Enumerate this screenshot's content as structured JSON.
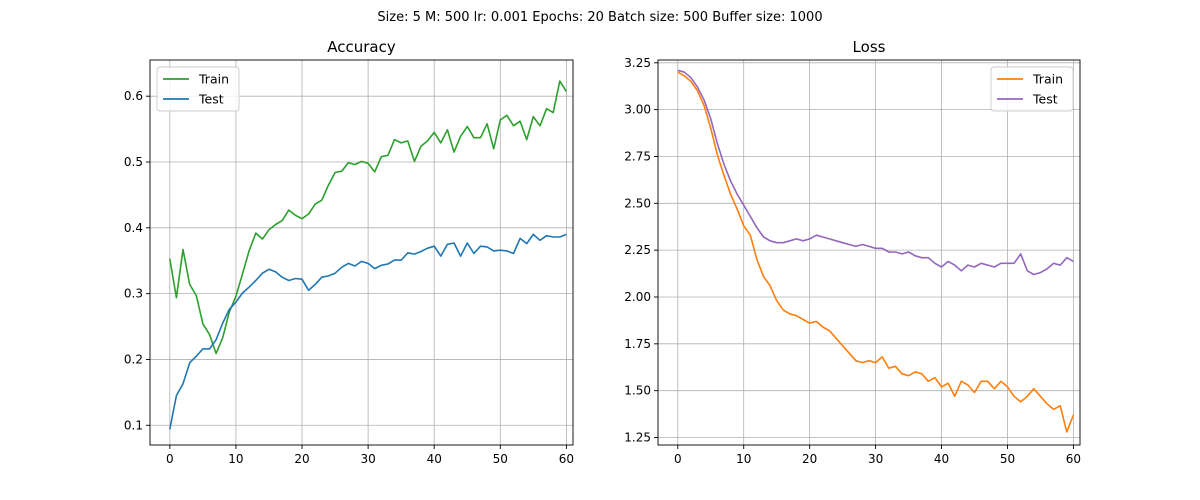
{
  "suptitle": "Size: 5   M: 500   lr: 0.001   Epochs: 20   Batch size: 500   Buffer size: 1000",
  "chart_data": [
    {
      "type": "line",
      "title": "Accuracy",
      "xlabel": "",
      "ylabel": "",
      "xlim": [
        -3,
        61
      ],
      "ylim": [
        0.07,
        0.655
      ],
      "xticks": [
        0,
        10,
        20,
        30,
        40,
        50,
        60
      ],
      "yticks": [
        0.1,
        0.2,
        0.3,
        0.4,
        0.5,
        0.6
      ],
      "xtick_labels": [
        "0",
        "10",
        "20",
        "30",
        "40",
        "50",
        "60"
      ],
      "ytick_labels": [
        "0.1",
        "0.2",
        "0.3",
        "0.4",
        "0.5",
        "0.6"
      ],
      "grid": true,
      "legend": "top-left",
      "series": [
        {
          "name": "Train",
          "color": "#2ca02c",
          "x": [
            0,
            1,
            2,
            3,
            4,
            5,
            6,
            7,
            8,
            9,
            10,
            11,
            12,
            13,
            14,
            15,
            16,
            17,
            18,
            19,
            20,
            21,
            22,
            23,
            24,
            25,
            26,
            27,
            28,
            29,
            30,
            31,
            32,
            33,
            34,
            35,
            36,
            37,
            38,
            39,
            40,
            41,
            42,
            43,
            44,
            45,
            46,
            47,
            48,
            49,
            50,
            51,
            52,
            53,
            54,
            55,
            56,
            57,
            58,
            59,
            60
          ],
          "values": [
            0.353,
            0.294,
            0.367,
            0.314,
            0.297,
            0.254,
            0.238,
            0.209,
            0.233,
            0.272,
            0.296,
            0.33,
            0.365,
            0.392,
            0.383,
            0.397,
            0.405,
            0.411,
            0.427,
            0.419,
            0.414,
            0.421,
            0.436,
            0.442,
            0.465,
            0.484,
            0.486,
            0.499,
            0.496,
            0.501,
            0.498,
            0.485,
            0.508,
            0.51,
            0.534,
            0.529,
            0.532,
            0.501,
            0.524,
            0.532,
            0.545,
            0.529,
            0.549,
            0.515,
            0.539,
            0.554,
            0.537,
            0.537,
            0.558,
            0.52,
            0.564,
            0.571,
            0.555,
            0.562,
            0.534,
            0.569,
            0.555,
            0.581,
            0.575,
            0.623,
            0.607
          ]
        },
        {
          "name": "Test",
          "color": "#1f77b4",
          "x": [
            0,
            1,
            2,
            3,
            4,
            5,
            6,
            7,
            8,
            9,
            10,
            11,
            12,
            13,
            14,
            15,
            16,
            17,
            18,
            19,
            20,
            21,
            22,
            23,
            24,
            25,
            26,
            27,
            28,
            29,
            30,
            31,
            32,
            33,
            34,
            35,
            36,
            37,
            38,
            39,
            40,
            41,
            42,
            43,
            44,
            45,
            46,
            47,
            48,
            49,
            50,
            51,
            52,
            53,
            54,
            55,
            56,
            57,
            58,
            59,
            60
          ],
          "values": [
            0.094,
            0.145,
            0.163,
            0.195,
            0.205,
            0.216,
            0.216,
            0.23,
            0.255,
            0.276,
            0.287,
            0.301,
            0.31,
            0.32,
            0.331,
            0.337,
            0.333,
            0.325,
            0.32,
            0.323,
            0.322,
            0.305,
            0.314,
            0.325,
            0.327,
            0.331,
            0.34,
            0.346,
            0.342,
            0.349,
            0.346,
            0.338,
            0.343,
            0.345,
            0.351,
            0.351,
            0.362,
            0.36,
            0.364,
            0.369,
            0.372,
            0.357,
            0.375,
            0.377,
            0.357,
            0.377,
            0.361,
            0.372,
            0.371,
            0.365,
            0.366,
            0.365,
            0.361,
            0.384,
            0.376,
            0.39,
            0.381,
            0.388,
            0.386,
            0.386,
            0.39
          ]
        }
      ]
    },
    {
      "type": "line",
      "title": "Loss",
      "xlabel": "",
      "ylabel": "",
      "xlim": [
        -3,
        61
      ],
      "ylim": [
        1.21,
        3.265
      ],
      "xticks": [
        0,
        10,
        20,
        30,
        40,
        50,
        60
      ],
      "yticks": [
        1.25,
        1.5,
        1.75,
        2.0,
        2.25,
        2.5,
        2.75,
        3.0,
        3.25
      ],
      "xtick_labels": [
        "0",
        "10",
        "20",
        "30",
        "40",
        "50",
        "60"
      ],
      "ytick_labels": [
        "1.25",
        "1.50",
        "1.75",
        "2.00",
        "2.25",
        "2.50",
        "2.75",
        "3.00",
        "3.25"
      ],
      "grid": true,
      "legend": "top-right",
      "series": [
        {
          "name": "Train",
          "color": "#ff7f0e",
          "x": [
            0,
            1,
            2,
            3,
            4,
            5,
            6,
            7,
            8,
            9,
            10,
            11,
            12,
            13,
            14,
            15,
            16,
            17,
            18,
            19,
            20,
            21,
            22,
            23,
            24,
            25,
            26,
            27,
            28,
            29,
            30,
            31,
            32,
            33,
            34,
            35,
            36,
            37,
            38,
            39,
            40,
            41,
            42,
            43,
            44,
            45,
            46,
            47,
            48,
            49,
            50,
            51,
            52,
            53,
            54,
            55,
            56,
            57,
            58,
            59,
            60
          ],
          "values": [
            3.2,
            3.18,
            3.15,
            3.1,
            3.02,
            2.9,
            2.76,
            2.65,
            2.55,
            2.47,
            2.38,
            2.33,
            2.2,
            2.11,
            2.06,
            1.98,
            1.93,
            1.91,
            1.9,
            1.88,
            1.86,
            1.87,
            1.84,
            1.82,
            1.78,
            1.74,
            1.7,
            1.66,
            1.65,
            1.66,
            1.65,
            1.68,
            1.62,
            1.63,
            1.59,
            1.58,
            1.6,
            1.59,
            1.55,
            1.57,
            1.52,
            1.54,
            1.47,
            1.55,
            1.53,
            1.49,
            1.55,
            1.55,
            1.51,
            1.55,
            1.52,
            1.47,
            1.44,
            1.47,
            1.51,
            1.47,
            1.43,
            1.4,
            1.42,
            1.28,
            1.37
          ]
        },
        {
          "name": "Test",
          "color": "#9467bd",
          "x": [
            0,
            1,
            2,
            3,
            4,
            5,
            6,
            7,
            8,
            9,
            10,
            11,
            12,
            13,
            14,
            15,
            16,
            17,
            18,
            19,
            20,
            21,
            22,
            23,
            24,
            25,
            26,
            27,
            28,
            29,
            30,
            31,
            32,
            33,
            34,
            35,
            36,
            37,
            38,
            39,
            40,
            41,
            42,
            43,
            44,
            45,
            46,
            47,
            48,
            49,
            50,
            51,
            52,
            53,
            54,
            55,
            56,
            57,
            58,
            59,
            60
          ],
          "values": [
            3.21,
            3.2,
            3.17,
            3.12,
            3.05,
            2.95,
            2.82,
            2.71,
            2.62,
            2.55,
            2.49,
            2.43,
            2.37,
            2.32,
            2.3,
            2.29,
            2.29,
            2.3,
            2.31,
            2.3,
            2.31,
            2.33,
            2.32,
            2.31,
            2.3,
            2.29,
            2.28,
            2.27,
            2.28,
            2.27,
            2.26,
            2.26,
            2.24,
            2.24,
            2.23,
            2.24,
            2.22,
            2.21,
            2.21,
            2.18,
            2.16,
            2.19,
            2.17,
            2.14,
            2.17,
            2.16,
            2.18,
            2.17,
            2.16,
            2.18,
            2.18,
            2.18,
            2.23,
            2.14,
            2.12,
            2.13,
            2.15,
            2.18,
            2.17,
            2.21,
            2.19
          ]
        }
      ]
    }
  ]
}
